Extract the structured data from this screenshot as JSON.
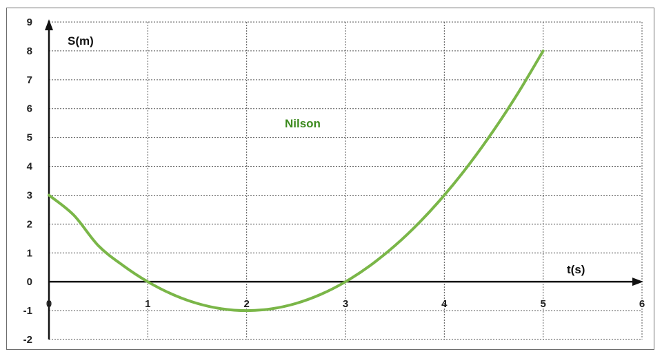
{
  "chart_data": {
    "type": "line",
    "title": "",
    "xlabel": "t(s)",
    "ylabel": "S(m)",
    "xlim": [
      0,
      6
    ],
    "ylim": [
      -2,
      9
    ],
    "x_ticks": [
      0,
      1,
      2,
      3,
      4,
      5,
      6
    ],
    "y_ticks": [
      -2,
      -1,
      0,
      1,
      2,
      3,
      4,
      5,
      6,
      7,
      8,
      9
    ],
    "grid": true,
    "annotation": "Nilson",
    "series": [
      {
        "name": "Nilson",
        "color": "#7ab648",
        "x": [
          0,
          0.25,
          0.5,
          0.75,
          1,
          1.25,
          1.5,
          1.75,
          2,
          2.25,
          2.5,
          2.75,
          3,
          3.25,
          3.5,
          3.75,
          4,
          4.25,
          4.5,
          4.75,
          5
        ],
        "y": [
          3,
          2.3125,
          1.25,
          0.5625,
          0,
          -0.4375,
          -0.75,
          -0.9375,
          -1,
          -0.9375,
          -0.75,
          -0.4375,
          0,
          0.5625,
          1.25,
          2.0625,
          3,
          4.0625,
          5.25,
          6.5625,
          8
        ]
      }
    ]
  }
}
